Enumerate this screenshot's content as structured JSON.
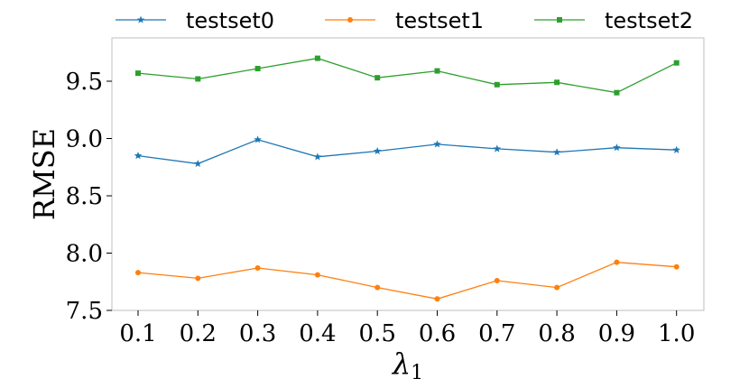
{
  "chart_data": {
    "type": "line",
    "x": [
      "0.1",
      "0.2",
      "0.3",
      "0.4",
      "0.5",
      "0.6",
      "0.7",
      "0.8",
      "0.9",
      "1.0"
    ],
    "xlabel": "λ1",
    "ylabel": "RMSE",
    "yticks": [
      "7.5",
      "8.0",
      "8.5",
      "9.0",
      "9.5"
    ],
    "ylim": [
      7.5,
      9.8
    ],
    "grid": false,
    "legend_position": "top, horizontal, outside plot",
    "series": [
      {
        "name": "testset0",
        "color": "#1f77b4",
        "marker": "star",
        "values": [
          8.85,
          8.78,
          8.99,
          8.84,
          8.89,
          8.95,
          8.91,
          8.88,
          8.92,
          8.9
        ]
      },
      {
        "name": "testset1",
        "color": "#ff7f0e",
        "marker": "circle",
        "values": [
          7.83,
          7.78,
          7.87,
          7.81,
          7.7,
          7.6,
          7.76,
          7.7,
          7.92,
          7.88
        ]
      },
      {
        "name": "testset2",
        "color": "#2ca02c",
        "marker": "square",
        "values": [
          9.57,
          9.52,
          9.61,
          9.7,
          9.53,
          9.59,
          9.47,
          9.49,
          9.4,
          9.66
        ]
      }
    ]
  }
}
